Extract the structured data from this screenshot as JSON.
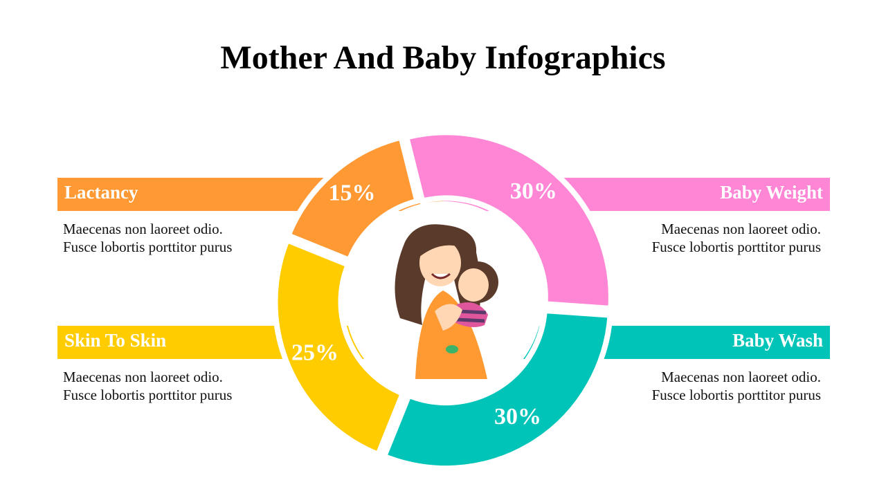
{
  "chart_data": {
    "type": "donut",
    "title": "Mother And Baby Infographics",
    "categories": [
      "Baby Weight",
      "Baby Wash",
      "Skin To Skin",
      "Lactancy"
    ],
    "values": [
      30,
      30,
      25,
      15
    ],
    "value_labels": [
      "30%",
      "30%",
      "25%",
      "15%"
    ],
    "colors": [
      "#ff85d5",
      "#00c4b8",
      "#ffcc00",
      "#ff9933"
    ],
    "descriptions": [
      [
        "Maecenas non laoreet odio.",
        "Fusce lobortis porttitor purus"
      ],
      [
        "Maecenas non laoreet odio.",
        "Fusce lobortis porttitor purus"
      ],
      [
        "Maecenas non laoreet odio.",
        "Fusce lobortis porttitor purus"
      ],
      [
        "Maecenas non laoreet odio.",
        "Fusce lobortis porttitor purus"
      ]
    ]
  }
}
